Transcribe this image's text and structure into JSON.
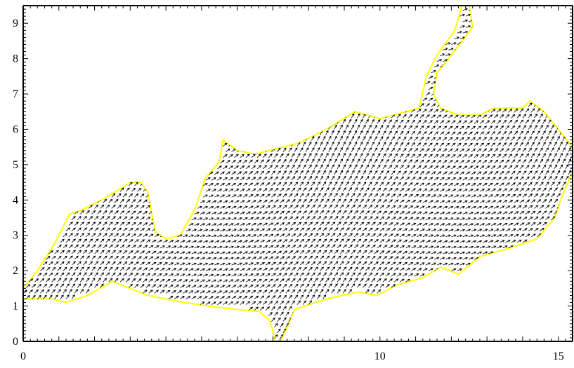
{
  "chart_data": {
    "type": "vector-field",
    "xlim": [
      0,
      15.4
    ],
    "ylim": [
      0,
      9.5
    ],
    "x_ticks": [
      0,
      10,
      15
    ],
    "x_tick_labels": [
      "0",
      "10",
      "15"
    ],
    "y_ticks": [
      0,
      1,
      2,
      3,
      4,
      5,
      6,
      7,
      8,
      9
    ],
    "y_tick_labels": [
      "0",
      "1",
      "2",
      "3",
      "4",
      "5",
      "6",
      "7",
      "8",
      "9"
    ],
    "title": "",
    "xlabel": "",
    "ylabel": "",
    "grid": false,
    "outline": [
      [
        0.0,
        1.2
      ],
      [
        0.5,
        1.2
      ],
      [
        0.8,
        1.2
      ],
      [
        1.2,
        1.1
      ],
      [
        1.8,
        1.3
      ],
      [
        2.5,
        1.7
      ],
      [
        3.5,
        1.3
      ],
      [
        4.5,
        1.1
      ],
      [
        5.2,
        1.0
      ],
      [
        6.0,
        0.9
      ],
      [
        6.6,
        0.85
      ],
      [
        6.9,
        0.6
      ],
      [
        7.0,
        0.3
      ],
      [
        7.05,
        0.0
      ],
      [
        7.2,
        0.0
      ],
      [
        7.4,
        0.4
      ],
      [
        7.6,
        0.9
      ],
      [
        8.5,
        1.2
      ],
      [
        9.4,
        1.4
      ],
      [
        9.9,
        1.3
      ],
      [
        10.5,
        1.6
      ],
      [
        11.2,
        1.8
      ],
      [
        11.7,
        2.1
      ],
      [
        12.2,
        1.9
      ],
      [
        12.8,
        2.4
      ],
      [
        13.5,
        2.6
      ],
      [
        14.4,
        2.9
      ],
      [
        14.9,
        3.5
      ],
      [
        15.1,
        4.1
      ],
      [
        15.4,
        4.8
      ],
      [
        15.4,
        5.5
      ],
      [
        15.0,
        6.0
      ],
      [
        14.6,
        6.5
      ],
      [
        14.2,
        6.8
      ],
      [
        14.0,
        6.6
      ],
      [
        13.2,
        6.6
      ],
      [
        12.8,
        6.4
      ],
      [
        12.2,
        6.4
      ],
      [
        11.7,
        6.6
      ],
      [
        11.5,
        7.0
      ],
      [
        11.6,
        7.6
      ],
      [
        12.0,
        8.1
      ],
      [
        12.3,
        8.5
      ],
      [
        12.6,
        8.9
      ],
      [
        12.5,
        9.5
      ],
      [
        12.3,
        9.5
      ],
      [
        12.1,
        8.8
      ],
      [
        11.6,
        8.1
      ],
      [
        11.3,
        7.5
      ],
      [
        11.1,
        6.6
      ],
      [
        10.0,
        6.3
      ],
      [
        9.3,
        6.5
      ],
      [
        8.5,
        6.0
      ],
      [
        7.7,
        5.6
      ],
      [
        6.5,
        5.3
      ],
      [
        6.0,
        5.4
      ],
      [
        5.6,
        5.7
      ],
      [
        5.5,
        5.1
      ],
      [
        5.1,
        4.6
      ],
      [
        4.8,
        3.7
      ],
      [
        4.4,
        3.0
      ],
      [
        4.0,
        2.9
      ],
      [
        3.7,
        3.1
      ],
      [
        3.5,
        4.2
      ],
      [
        3.3,
        4.5
      ],
      [
        3.0,
        4.5
      ],
      [
        2.7,
        4.3
      ],
      [
        2.2,
        4.0
      ],
      [
        1.6,
        3.7
      ],
      [
        1.3,
        3.6
      ],
      [
        0.9,
        2.8
      ],
      [
        0.4,
        2.0
      ],
      [
        0.0,
        1.5
      ]
    ],
    "arrow_spacing": 0.16,
    "arrow_length": 0.14,
    "flow_direction_deg": 40,
    "arrow_color": "#000000",
    "outline_color": "#ffff00",
    "background_color": "#ffffff"
  }
}
